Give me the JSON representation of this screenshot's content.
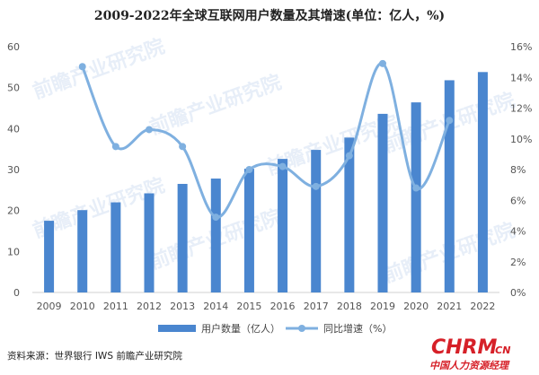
{
  "chart_data": {
    "type": "bar+line",
    "title": "2009-2022年全球互联网用户数量及其增速(单位：亿人，%)",
    "categories": [
      "2009",
      "2010",
      "2011",
      "2012",
      "2013",
      "2014",
      "2015",
      "2016",
      "2017",
      "2018",
      "2019",
      "2020",
      "2021",
      "2022"
    ],
    "series": [
      {
        "name": "用户数量（亿人）",
        "type": "bar",
        "axis": "left",
        "values": [
          17.5,
          20.1,
          22.0,
          24.2,
          26.5,
          27.8,
          30.2,
          32.6,
          34.8,
          37.8,
          43.6,
          46.4,
          51.8,
          53.8
        ],
        "color": "#4a86cf"
      },
      {
        "name": "同比增速（%）",
        "type": "line",
        "axis": "right",
        "values": [
          null,
          14.7,
          9.5,
          10.6,
          9.5,
          4.9,
          8.0,
          8.2,
          6.9,
          8.9,
          14.9,
          6.8,
          11.2,
          null
        ],
        "color": "#7fb0e0"
      }
    ],
    "y_left": {
      "min": 0,
      "max": 60,
      "ticks": [
        0,
        10,
        20,
        30,
        40,
        50,
        60
      ]
    },
    "y_right": {
      "min": 0,
      "max": 16,
      "ticks": [
        "0%",
        "2%",
        "4%",
        "6%",
        "8%",
        "10%",
        "12%",
        "14%",
        "16%"
      ]
    },
    "legend_position": "bottom",
    "grid": false
  },
  "source": "资料来源：世界银行 IWS 前瞻产业研究院",
  "watermark": "前瞻产业研究院",
  "logo": {
    "main": "CHRM",
    "suffix": ".CN",
    "sub": "中国人力资源经理"
  }
}
